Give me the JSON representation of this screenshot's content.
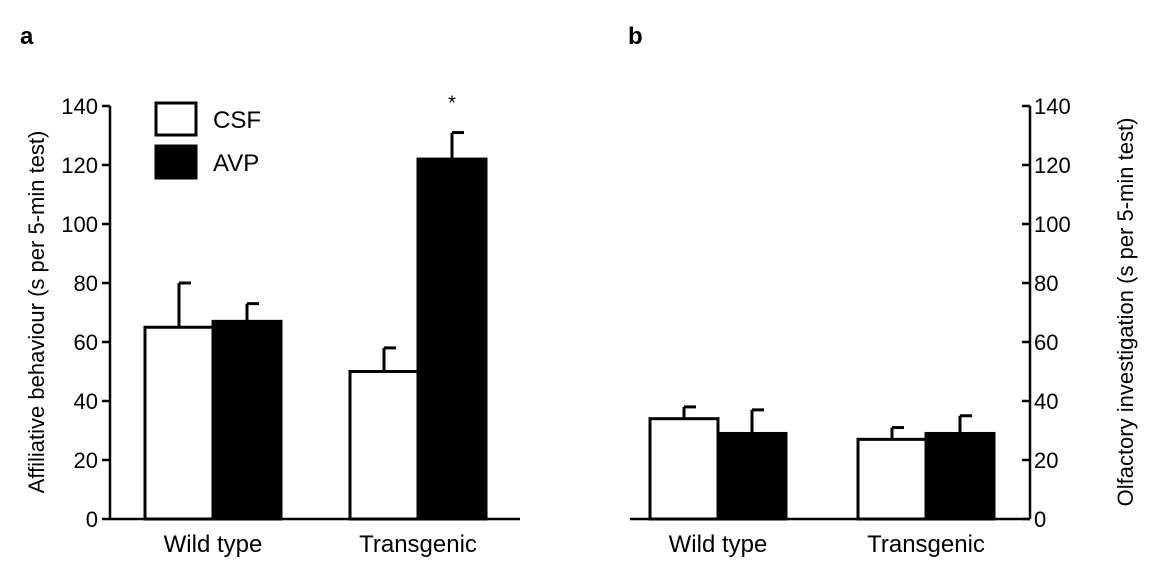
{
  "chart_data": [
    {
      "type": "bar",
      "panel_label": "a",
      "ylabel": "Affiliative behaviour (s per 5-min test)",
      "xlabel": "",
      "categories": [
        "Wild type",
        "Transgenic"
      ],
      "ylim": [
        0,
        140
      ],
      "yticks": [
        "0",
        "20",
        "40",
        "60",
        "80",
        "100",
        "120",
        "140"
      ],
      "axis_side": "left",
      "legend_position": "top-left",
      "series": [
        {
          "name": "CSF",
          "style": "open",
          "values": [
            65,
            50
          ],
          "errors": [
            15,
            8
          ]
        },
        {
          "name": "AVP",
          "style": "filled",
          "values": [
            67,
            122
          ],
          "errors": [
            6,
            9
          ]
        }
      ],
      "annotations": [
        {
          "text": "*",
          "category": "Transgenic",
          "series": "AVP"
        }
      ]
    },
    {
      "type": "bar",
      "panel_label": "b",
      "ylabel": "Olfactory investigation (s per 5-min test)",
      "xlabel": "",
      "categories": [
        "Wild type",
        "Transgenic"
      ],
      "ylim": [
        0,
        140
      ],
      "yticks": [
        "0",
        "20",
        "40",
        "60",
        "80",
        "100",
        "120",
        "140"
      ],
      "axis_side": "right",
      "legend_position": "none",
      "series": [
        {
          "name": "CSF",
          "style": "open",
          "values": [
            34,
            27
          ],
          "errors": [
            4,
            4
          ]
        },
        {
          "name": "AVP",
          "style": "filled",
          "values": [
            29,
            29
          ],
          "errors": [
            8,
            6
          ]
        }
      ],
      "annotations": []
    }
  ]
}
